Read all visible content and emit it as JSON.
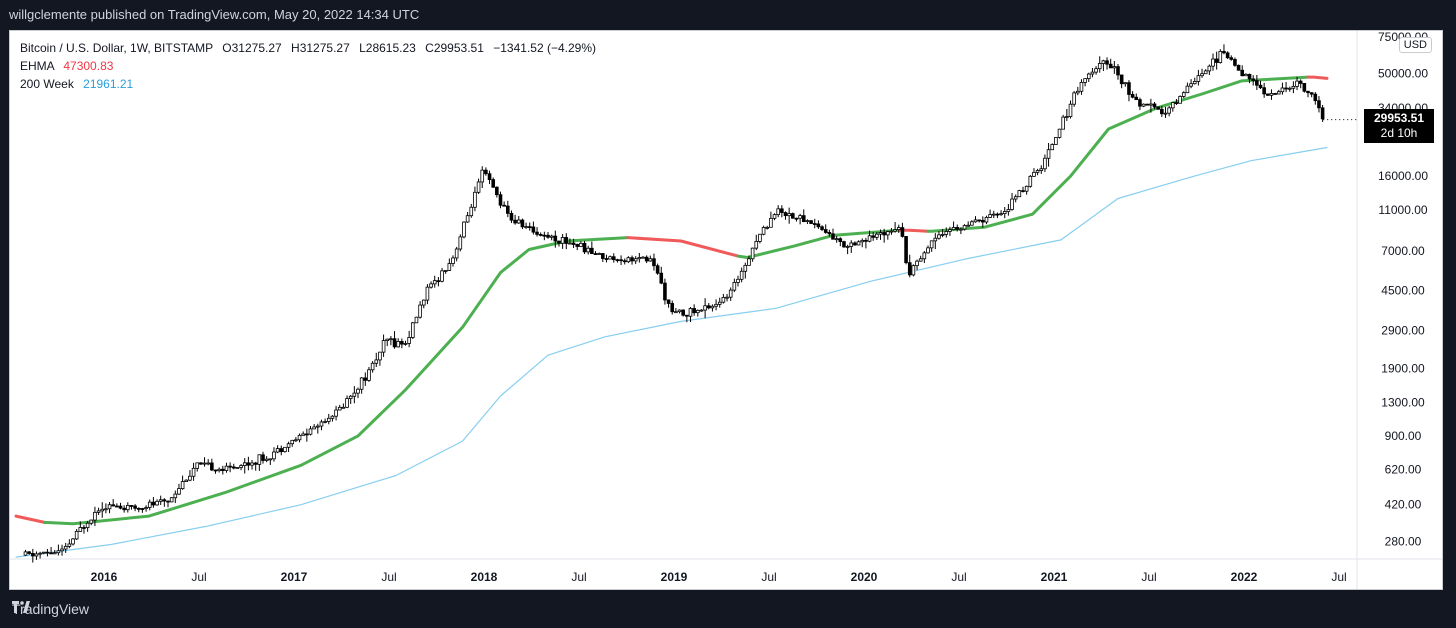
{
  "header": {
    "publisher_line": "willgclemente published on TradingView.com, May 20, 2022 14:34 UTC"
  },
  "legend": {
    "symbol_line": "Bitcoin / U.S. Dollar, 1W, BITSTAMP",
    "open": "O31275.27",
    "high": "H31275.27",
    "low": "L28615.23",
    "close": "C29953.51",
    "change": "−1341.52 (−4.29%)",
    "ehma_label": "EHMA",
    "ehma_value": "47300.83",
    "ma_label": "200 Week",
    "ma_value": "21961.21"
  },
  "price_scale": {
    "currency": "USD",
    "last_price": "29953.51",
    "countdown": "2d 10h"
  },
  "footer": {
    "brand": "TradingView"
  },
  "colors": {
    "background": "#ffffff",
    "frame": "#131722",
    "ehma_up": "#4caf50",
    "ehma_down": "#f05a5a",
    "ma200": "#87cef0",
    "candle": "#000000"
  },
  "chart_data": {
    "type": "candlestick",
    "title": "Bitcoin / U.S. Dollar, 1W, BITSTAMP",
    "y_scale": "log",
    "ylim": [
      230,
      80000
    ],
    "y_ticks": [
      "75000.00",
      "50000.00",
      "34000.00",
      "16000.00",
      "11000.00",
      "7000.00",
      "4500.00",
      "2900.00",
      "1900.00",
      "1300.00",
      "900.00",
      "620.00",
      "420.00",
      "280.00"
    ],
    "x_labels": [
      "2016",
      "Jul",
      "2017",
      "Jul",
      "2018",
      "Jul",
      "2019",
      "Jul",
      "2020",
      "Jul",
      "2021",
      "Jul",
      "2022",
      "Jul"
    ],
    "price_path": [
      {
        "t": 2015.55,
        "p": 240
      },
      {
        "t": 2015.75,
        "p": 250
      },
      {
        "t": 2015.85,
        "p": 330
      },
      {
        "t": 2015.95,
        "p": 420
      },
      {
        "t": 2016.1,
        "p": 400
      },
      {
        "t": 2016.3,
        "p": 440
      },
      {
        "t": 2016.45,
        "p": 650
      },
      {
        "t": 2016.6,
        "p": 620
      },
      {
        "t": 2016.8,
        "p": 700
      },
      {
        "t": 2017.0,
        "p": 900
      },
      {
        "t": 2017.2,
        "p": 1200
      },
      {
        "t": 2017.35,
        "p": 1800
      },
      {
        "t": 2017.45,
        "p": 2600
      },
      {
        "t": 2017.55,
        "p": 2500
      },
      {
        "t": 2017.65,
        "p": 4300
      },
      {
        "t": 2017.8,
        "p": 6500
      },
      {
        "t": 2017.96,
        "p": 17000
      },
      {
        "t": 2018.1,
        "p": 10000
      },
      {
        "t": 2018.25,
        "p": 8500
      },
      {
        "t": 2018.45,
        "p": 7500
      },
      {
        "t": 2018.6,
        "p": 6500
      },
      {
        "t": 2018.85,
        "p": 6300
      },
      {
        "t": 2018.95,
        "p": 3500
      },
      {
        "t": 2019.1,
        "p": 3600
      },
      {
        "t": 2019.25,
        "p": 4200
      },
      {
        "t": 2019.4,
        "p": 8000
      },
      {
        "t": 2019.5,
        "p": 11000
      },
      {
        "t": 2019.7,
        "p": 9500
      },
      {
        "t": 2019.85,
        "p": 7500
      },
      {
        "t": 2020.0,
        "p": 8000
      },
      {
        "t": 2020.15,
        "p": 9500
      },
      {
        "t": 2020.2,
        "p": 5500
      },
      {
        "t": 2020.35,
        "p": 8500
      },
      {
        "t": 2020.55,
        "p": 9500
      },
      {
        "t": 2020.7,
        "p": 10800
      },
      {
        "t": 2020.9,
        "p": 18000
      },
      {
        "t": 2021.1,
        "p": 45000
      },
      {
        "t": 2021.25,
        "p": 58000
      },
      {
        "t": 2021.4,
        "p": 36000
      },
      {
        "t": 2021.55,
        "p": 32000
      },
      {
        "t": 2021.7,
        "p": 47000
      },
      {
        "t": 2021.85,
        "p": 63000
      },
      {
        "t": 2022.0,
        "p": 46000
      },
      {
        "t": 2022.1,
        "p": 39000
      },
      {
        "t": 2022.25,
        "p": 45000
      },
      {
        "t": 2022.33,
        "p": 38000
      },
      {
        "t": 2022.38,
        "p": 29953
      }
    ],
    "ehma": [
      {
        "t": 2015.5,
        "p": 370,
        "dir": "down"
      },
      {
        "t": 2015.65,
        "p": 345,
        "dir": "down"
      },
      {
        "t": 2015.8,
        "p": 340,
        "dir": "up"
      },
      {
        "t": 2016.2,
        "p": 370,
        "dir": "up"
      },
      {
        "t": 2016.6,
        "p": 480,
        "dir": "up"
      },
      {
        "t": 2017.0,
        "p": 650,
        "dir": "up"
      },
      {
        "t": 2017.3,
        "p": 900,
        "dir": "up"
      },
      {
        "t": 2017.55,
        "p": 1500,
        "dir": "up"
      },
      {
        "t": 2017.85,
        "p": 3000,
        "dir": "up"
      },
      {
        "t": 2018.05,
        "p": 5500,
        "dir": "up"
      },
      {
        "t": 2018.2,
        "p": 7100,
        "dir": "up"
      },
      {
        "t": 2018.4,
        "p": 7800,
        "dir": "up"
      },
      {
        "t": 2018.72,
        "p": 8100,
        "dir": "up"
      },
      {
        "t": 2018.72,
        "p": 8100,
        "dir": "down"
      },
      {
        "t": 2019.0,
        "p": 7800,
        "dir": "down"
      },
      {
        "t": 2019.3,
        "p": 6600,
        "dir": "down"
      },
      {
        "t": 2019.35,
        "p": 6500,
        "dir": "up"
      },
      {
        "t": 2019.6,
        "p": 7400,
        "dir": "up"
      },
      {
        "t": 2019.8,
        "p": 8300,
        "dir": "up"
      },
      {
        "t": 2020.15,
        "p": 8800,
        "dir": "up"
      },
      {
        "t": 2020.2,
        "p": 8800,
        "dir": "down"
      },
      {
        "t": 2020.3,
        "p": 8700,
        "dir": "down"
      },
      {
        "t": 2020.32,
        "p": 8700,
        "dir": "up"
      },
      {
        "t": 2020.6,
        "p": 9100,
        "dir": "up"
      },
      {
        "t": 2020.85,
        "p": 10500,
        "dir": "up"
      },
      {
        "t": 2021.05,
        "p": 16000,
        "dir": "up"
      },
      {
        "t": 2021.25,
        "p": 27000,
        "dir": "up"
      },
      {
        "t": 2021.5,
        "p": 34000,
        "dir": "up"
      },
      {
        "t": 2021.75,
        "p": 40000,
        "dir": "up"
      },
      {
        "t": 2021.95,
        "p": 46000,
        "dir": "up"
      },
      {
        "t": 2022.3,
        "p": 48000,
        "dir": "up"
      },
      {
        "t": 2022.33,
        "p": 48000,
        "dir": "down"
      },
      {
        "t": 2022.4,
        "p": 47300,
        "dir": "down"
      }
    ],
    "ma200": [
      {
        "t": 2015.5,
        "p": 235
      },
      {
        "t": 2016.0,
        "p": 270
      },
      {
        "t": 2016.5,
        "p": 330
      },
      {
        "t": 2017.0,
        "p": 420
      },
      {
        "t": 2017.5,
        "p": 580
      },
      {
        "t": 2017.85,
        "p": 850
      },
      {
        "t": 2018.05,
        "p": 1400
      },
      {
        "t": 2018.3,
        "p": 2200
      },
      {
        "t": 2018.6,
        "p": 2700
      },
      {
        "t": 2019.0,
        "p": 3200
      },
      {
        "t": 2019.5,
        "p": 3700
      },
      {
        "t": 2020.0,
        "p": 5000
      },
      {
        "t": 2020.5,
        "p": 6400
      },
      {
        "t": 2021.0,
        "p": 7900
      },
      {
        "t": 2021.3,
        "p": 12500
      },
      {
        "t": 2021.7,
        "p": 16000
      },
      {
        "t": 2022.0,
        "p": 19000
      },
      {
        "t": 2022.4,
        "p": 22000
      }
    ]
  }
}
